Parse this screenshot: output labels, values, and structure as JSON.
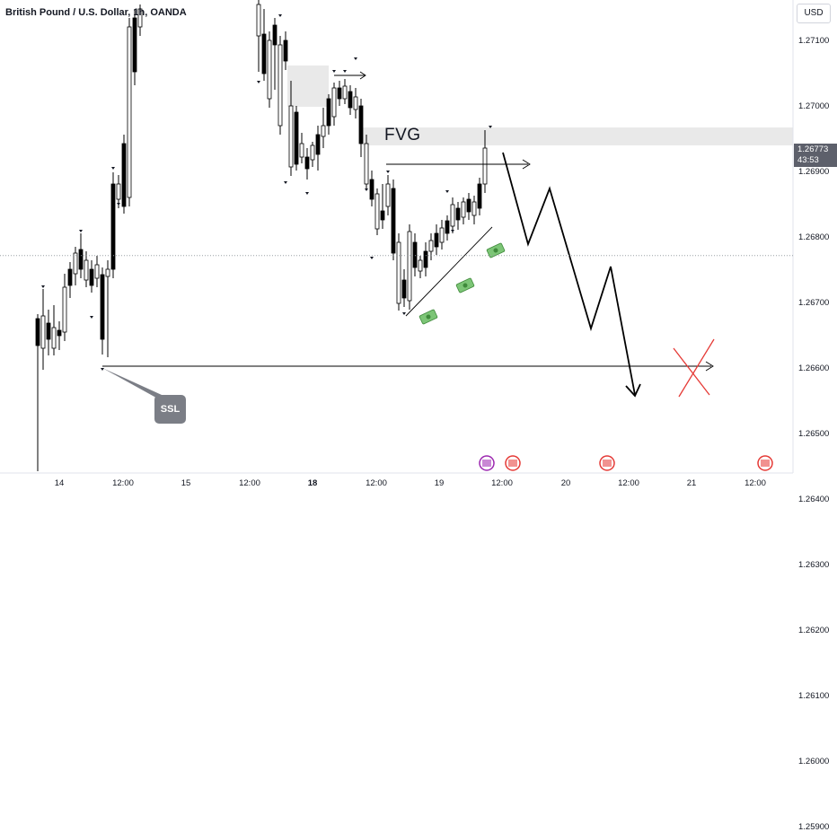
{
  "title": "British Pound / U.S. Dollar, 1h, OANDA",
  "currency_button": "USD",
  "chart_data": {
    "type": "candlestick",
    "symbol": "GBPUSD",
    "interval": "1h",
    "source": "OANDA",
    "y_ticks": [
      "1.27100",
      "1.27000",
      "1.26900",
      "1.26800",
      "1.26700",
      "1.26600",
      "1.26500",
      "1.26400",
      "1.26300",
      "1.26200",
      "1.26100",
      "1.26000",
      "1.25900"
    ],
    "x_ticks": [
      {
        "label": "14",
        "bold": false
      },
      {
        "label": "12:00",
        "bold": false
      },
      {
        "label": "15",
        "bold": false
      },
      {
        "label": "12:00",
        "bold": false
      },
      {
        "label": "18",
        "bold": true
      },
      {
        "label": "12:00",
        "bold": false
      },
      {
        "label": "19",
        "bold": false
      },
      {
        "label": "12:00",
        "bold": false
      },
      {
        "label": "20",
        "bold": false
      },
      {
        "label": "12:00",
        "bold": false
      },
      {
        "label": "21",
        "bold": false
      },
      {
        "label": "12:00",
        "bold": false
      }
    ],
    "last_price": "1.26773",
    "countdown": "43:53",
    "annotations": {
      "fvg_label": "FVG",
      "ssl_label": "SSL"
    },
    "colors": {
      "up": "#ffffff",
      "down": "#000000",
      "wick": "#000000",
      "zone": "#e0e0e0",
      "cross": "#e53935"
    }
  }
}
